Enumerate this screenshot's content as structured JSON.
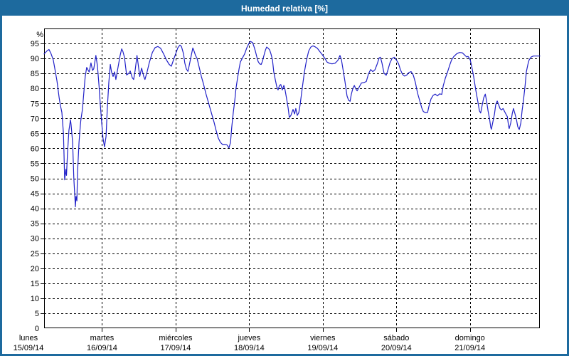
{
  "title": "Humedad relativa [%]",
  "colors": {
    "frame_blue": "#1d6a9e",
    "title_text": "#ffffff",
    "line_blue": "#2121c8",
    "grid_black": "#000000",
    "background": "#ffffff"
  },
  "y_axis": {
    "unit_label": "%",
    "tick_labels": [
      0,
      5,
      10,
      15,
      20,
      25,
      30,
      35,
      40,
      45,
      50,
      55,
      60,
      65,
      70,
      75,
      80,
      85,
      90,
      95
    ]
  },
  "x_axis": {
    "days": [
      {
        "name": "lunes",
        "date": "15/09/14"
      },
      {
        "name": "martes",
        "date": "16/09/14"
      },
      {
        "name": "miércoles",
        "date": "17/09/14"
      },
      {
        "name": "jueves",
        "date": "18/09/14"
      },
      {
        "name": "viernes",
        "date": "19/09/14"
      },
      {
        "name": "sábado",
        "date": "20/09/14"
      },
      {
        "name": "domingo",
        "date": "21/09/14"
      }
    ]
  },
  "chart_data": {
    "type": "line",
    "title": "Humedad relativa [%]",
    "ylabel": "%",
    "ylim": [
      0,
      100
    ],
    "y_tick_step": 5,
    "x_unit": "hours since lunes 15/09/14 00:00",
    "x_range": [
      5.1,
      166.8
    ],
    "day_length_hours": 24,
    "grid": "dashed",
    "legend": "none",
    "line_color": "#2121c8",
    "points": [
      [
        5.1,
        91.5
      ],
      [
        6.0,
        92.5
      ],
      [
        6.7,
        93.0
      ],
      [
        7.4,
        91.5
      ],
      [
        8.1,
        89.5
      ],
      [
        8.8,
        85.5
      ],
      [
        9.3,
        82.5
      ],
      [
        10.0,
        77.0
      ],
      [
        10.4,
        74.5
      ],
      [
        10.9,
        72.0
      ],
      [
        11.4,
        65.0
      ],
      [
        11.6,
        58.0
      ],
      [
        11.8,
        49.5
      ],
      [
        12.2,
        53.0
      ],
      [
        12.4,
        51.0
      ],
      [
        12.7,
        58.0
      ],
      [
        13.2,
        66.0
      ],
      [
        13.7,
        69.5
      ],
      [
        13.9,
        68.0
      ],
      [
        14.4,
        62.0
      ],
      [
        14.8,
        50.0
      ],
      [
        15.3,
        40.5
      ],
      [
        15.5,
        44.0
      ],
      [
        15.8,
        42.5
      ],
      [
        16.0,
        52.0
      ],
      [
        16.5,
        62.0
      ],
      [
        16.9,
        67.5
      ],
      [
        17.1,
        69.5
      ],
      [
        17.6,
        73.0
      ],
      [
        18.1,
        79.0
      ],
      [
        18.5,
        84.0
      ],
      [
        19.0,
        87.0
      ],
      [
        19.5,
        86.0
      ],
      [
        19.8,
        85.5
      ],
      [
        20.4,
        88.5
      ],
      [
        20.9,
        86.0
      ],
      [
        21.3,
        86.5
      ],
      [
        22.0,
        91.0
      ],
      [
        22.5,
        87.5
      ],
      [
        23.0,
        81.0
      ],
      [
        23.4,
        75.0
      ],
      [
        23.9,
        68.5
      ],
      [
        24.3,
        63.5
      ],
      [
        24.8,
        60.5
      ],
      [
        25.3,
        64.0
      ],
      [
        25.7,
        73.0
      ],
      [
        26.2,
        82.0
      ],
      [
        26.7,
        88.0
      ],
      [
        27.1,
        85.5
      ],
      [
        27.6,
        84.0
      ],
      [
        28.1,
        85.5
      ],
      [
        28.5,
        83.0
      ],
      [
        29.2,
        87.0
      ],
      [
        29.9,
        91.0
      ],
      [
        30.4,
        93.2
      ],
      [
        30.8,
        92.3
      ],
      [
        31.3,
        90.5
      ],
      [
        32.0,
        84.5
      ],
      [
        32.7,
        85.0
      ],
      [
        33.2,
        85.8
      ],
      [
        33.9,
        83.5
      ],
      [
        34.3,
        83.0
      ],
      [
        34.8,
        86.0
      ],
      [
        35.4,
        91.0
      ],
      [
        35.8,
        88.0
      ],
      [
        36.3,
        84.0
      ],
      [
        36.9,
        86.8
      ],
      [
        37.6,
        84.0
      ],
      [
        38.0,
        83.0
      ],
      [
        38.7,
        85.5
      ],
      [
        39.4,
        88.5
      ],
      [
        40.4,
        92.0
      ],
      [
        41.3,
        93.6
      ],
      [
        42.2,
        94.0
      ],
      [
        43.1,
        93.4
      ],
      [
        44.1,
        91.5
      ],
      [
        45.0,
        89.5
      ],
      [
        45.9,
        88.0
      ],
      [
        46.6,
        87.4
      ],
      [
        47.3,
        89.5
      ],
      [
        48.0,
        91.5
      ],
      [
        48.7,
        93.5
      ],
      [
        49.4,
        94.5
      ],
      [
        49.9,
        94.0
      ],
      [
        50.6,
        91.5
      ],
      [
        51.0,
        88.5
      ],
      [
        51.5,
        86.5
      ],
      [
        52.0,
        85.7
      ],
      [
        52.4,
        87.5
      ],
      [
        53.1,
        91.0
      ],
      [
        53.6,
        93.5
      ],
      [
        54.0,
        92.5
      ],
      [
        54.5,
        91.0
      ],
      [
        55.0,
        90.0
      ],
      [
        55.7,
        87.0
      ],
      [
        56.4,
        84.0
      ],
      [
        57.1,
        81.5
      ],
      [
        57.8,
        78.5
      ],
      [
        58.5,
        76.0
      ],
      [
        59.2,
        73.5
      ],
      [
        59.9,
        71.0
      ],
      [
        60.6,
        68.5
      ],
      [
        61.2,
        66.0
      ],
      [
        61.9,
        63.5
      ],
      [
        62.6,
        62.0
      ],
      [
        63.3,
        61.3
      ],
      [
        64.0,
        61.3
      ],
      [
        64.7,
        61.2
      ],
      [
        65.4,
        60.2
      ],
      [
        65.9,
        62.0
      ],
      [
        66.3,
        67.0
      ],
      [
        66.8,
        72.0
      ],
      [
        67.3,
        76.0
      ],
      [
        67.7,
        80.0
      ],
      [
        68.2,
        83.5
      ],
      [
        68.7,
        86.5
      ],
      [
        69.1,
        88.8
      ],
      [
        69.8,
        90.2
      ],
      [
        70.5,
        91.5
      ],
      [
        71.2,
        93.5
      ],
      [
        71.9,
        95.0
      ],
      [
        72.4,
        95.7
      ],
      [
        73.1,
        95.3
      ],
      [
        73.5,
        94.2
      ],
      [
        74.0,
        92.5
      ],
      [
        74.5,
        90.5
      ],
      [
        74.9,
        89.0
      ],
      [
        75.4,
        88.2
      ],
      [
        75.9,
        88.0
      ],
      [
        76.3,
        89.0
      ],
      [
        76.8,
        91.0
      ],
      [
        77.3,
        92.8
      ],
      [
        77.7,
        93.8
      ],
      [
        78.2,
        93.4
      ],
      [
        78.7,
        92.8
      ],
      [
        79.1,
        91.5
      ],
      [
        79.6,
        89.5
      ],
      [
        80.0,
        85.5
      ],
      [
        80.5,
        83.0
      ],
      [
        81.0,
        80.5
      ],
      [
        81.4,
        79.5
      ],
      [
        81.9,
        81.0
      ],
      [
        82.3,
        81.3
      ],
      [
        82.8,
        79.5
      ],
      [
        83.3,
        81.0
      ],
      [
        83.7,
        79.5
      ],
      [
        84.2,
        76.5
      ],
      [
        84.7,
        73.5
      ],
      [
        85.1,
        70.3
      ],
      [
        85.6,
        71.0
      ],
      [
        86.3,
        73.0
      ],
      [
        86.8,
        71.5
      ],
      [
        87.2,
        73.3
      ],
      [
        87.7,
        71.0
      ],
      [
        88.2,
        72.0
      ],
      [
        88.6,
        74.5
      ],
      [
        89.3,
        80.0
      ],
      [
        90.0,
        85.5
      ],
      [
        90.7,
        89.5
      ],
      [
        91.4,
        92.5
      ],
      [
        92.1,
        93.8
      ],
      [
        92.8,
        94.2
      ],
      [
        93.5,
        93.9
      ],
      [
        94.2,
        93.4
      ],
      [
        95.1,
        92.2
      ],
      [
        95.8,
        91.3
      ],
      [
        96.7,
        90.0
      ],
      [
        97.4,
        88.8
      ],
      [
        98.1,
        88.4
      ],
      [
        99.0,
        88.2
      ],
      [
        100.0,
        88.4
      ],
      [
        100.9,
        89.3
      ],
      [
        101.6,
        91.0
      ],
      [
        102.1,
        89.5
      ],
      [
        102.5,
        87.0
      ],
      [
        103.2,
        82.5
      ],
      [
        103.9,
        77.5
      ],
      [
        104.4,
        76.1
      ],
      [
        104.9,
        75.7
      ],
      [
        105.3,
        78.0
      ],
      [
        105.8,
        80.0
      ],
      [
        106.3,
        81.0
      ],
      [
        106.7,
        80.0
      ],
      [
        107.2,
        79.2
      ],
      [
        107.9,
        80.5
      ],
      [
        108.6,
        81.8
      ],
      [
        109.5,
        82.0
      ],
      [
        110.2,
        82.3
      ],
      [
        110.9,
        84.8
      ],
      [
        111.6,
        86.3
      ],
      [
        112.3,
        85.6
      ],
      [
        113.0,
        86.2
      ],
      [
        113.7,
        88.0
      ],
      [
        114.4,
        90.2
      ],
      [
        114.8,
        90.4
      ],
      [
        115.3,
        88.5
      ],
      [
        116.0,
        85.0
      ],
      [
        116.7,
        84.4
      ],
      [
        117.2,
        86.0
      ],
      [
        117.9,
        88.5
      ],
      [
        118.6,
        90.0
      ],
      [
        119.3,
        90.4
      ],
      [
        120.0,
        89.5
      ],
      [
        120.7,
        88.3
      ],
      [
        121.3,
        86.3
      ],
      [
        122.0,
        84.7
      ],
      [
        122.7,
        84.1
      ],
      [
        123.4,
        84.5
      ],
      [
        124.1,
        85.3
      ],
      [
        124.8,
        85.6
      ],
      [
        125.5,
        84.5
      ],
      [
        126.2,
        82.0
      ],
      [
        126.9,
        78.5
      ],
      [
        127.6,
        76.0
      ],
      [
        128.3,
        73.5
      ],
      [
        128.8,
        72.3
      ],
      [
        129.5,
        71.9
      ],
      [
        130.2,
        72.0
      ],
      [
        130.6,
        74.0
      ],
      [
        131.3,
        76.5
      ],
      [
        132.0,
        77.7
      ],
      [
        132.7,
        78.1
      ],
      [
        133.4,
        77.5
      ],
      [
        134.1,
        78.2
      ],
      [
        134.8,
        78.0
      ],
      [
        135.3,
        80.9
      ],
      [
        136.0,
        83.5
      ],
      [
        136.7,
        85.5
      ],
      [
        137.4,
        87.8
      ],
      [
        138.0,
        89.5
      ],
      [
        138.7,
        90.6
      ],
      [
        139.7,
        91.6
      ],
      [
        140.6,
        92.0
      ],
      [
        141.5,
        91.9
      ],
      [
        142.2,
        91.2
      ],
      [
        142.9,
        90.5
      ],
      [
        143.4,
        90.7
      ],
      [
        144.1,
        89.5
      ],
      [
        144.6,
        87.2
      ],
      [
        145.2,
        84.0
      ],
      [
        145.9,
        79.5
      ],
      [
        146.6,
        75.5
      ],
      [
        147.1,
        72.5
      ],
      [
        147.5,
        71.8
      ],
      [
        148.0,
        74.5
      ],
      [
        148.5,
        76.9
      ],
      [
        149.0,
        78.1
      ],
      [
        149.4,
        76.0
      ],
      [
        149.9,
        72.5
      ],
      [
        150.4,
        69.8
      ],
      [
        150.8,
        67.0
      ],
      [
        151.0,
        66.4
      ],
      [
        151.5,
        69.0
      ],
      [
        152.0,
        71.4
      ],
      [
        152.4,
        74.5
      ],
      [
        152.9,
        75.8
      ],
      [
        153.4,
        74.5
      ],
      [
        153.8,
        73.3
      ],
      [
        154.3,
        72.8
      ],
      [
        154.8,
        73.3
      ],
      [
        155.2,
        72.5
      ],
      [
        155.7,
        71.5
      ],
      [
        156.2,
        70.6
      ],
      [
        156.6,
        67.5
      ],
      [
        156.8,
        66.6
      ],
      [
        157.3,
        68.5
      ],
      [
        157.8,
        71.6
      ],
      [
        158.2,
        73.3
      ],
      [
        158.7,
        71.5
      ],
      [
        159.2,
        69.5
      ],
      [
        159.6,
        67.2
      ],
      [
        160.1,
        66.3
      ],
      [
        160.6,
        68.5
      ],
      [
        161.0,
        72.5
      ],
      [
        161.5,
        76.5
      ],
      [
        162.0,
        81.0
      ],
      [
        162.4,
        85.5
      ],
      [
        162.9,
        88.0
      ],
      [
        163.3,
        89.5
      ],
      [
        164.0,
        90.5
      ],
      [
        164.7,
        90.8
      ],
      [
        165.7,
        90.8
      ],
      [
        166.8,
        90.8
      ]
    ]
  }
}
